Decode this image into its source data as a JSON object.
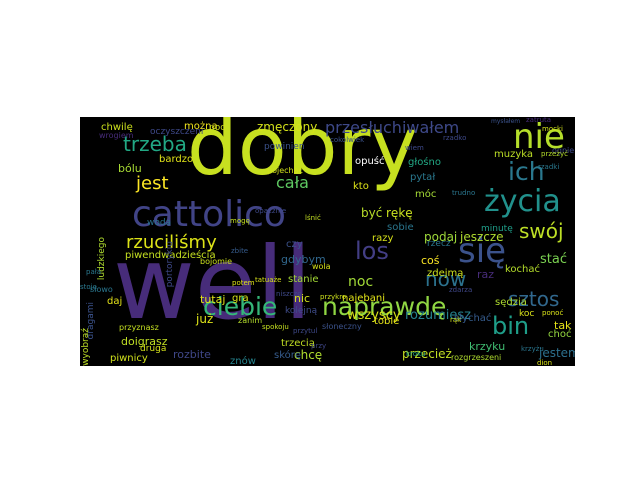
{
  "figure": {
    "background": "#000000",
    "page_background": "#ffffff",
    "colormap": "viridis"
  },
  "words": [
    {
      "text": "well",
      "color": "#472c7a"
    },
    {
      "text": "dobry",
      "color": "#c7e020"
    },
    {
      "text": "cattolico",
      "color": "#414487"
    },
    {
      "text": "się",
      "color": "#3b528b"
    },
    {
      "text": "naprawdę",
      "color": "#90d743"
    },
    {
      "text": "ciebie",
      "color": "#35b779"
    },
    {
      "text": "życia",
      "color": "#21918c"
    },
    {
      "text": "nie",
      "color": "#b5de2b"
    },
    {
      "text": "ich",
      "color": "#2a788e"
    },
    {
      "text": "trzeba",
      "color": "#22a884"
    },
    {
      "text": "bin",
      "color": "#1f9e89"
    },
    {
      "text": "los",
      "color": "#433e85"
    },
    {
      "text": "now",
      "color": "#2c728e"
    },
    {
      "text": "rzuciliśmy",
      "color": "#dde318"
    },
    {
      "text": "sztos",
      "color": "#31688e"
    },
    {
      "text": "swój",
      "color": "#bddf26"
    },
    {
      "text": "jest",
      "color": "#fde725"
    },
    {
      "text": "przesłuchiwałem",
      "color": "#3e4989"
    },
    {
      "text": "cała",
      "color": "#5ec962"
    },
    {
      "text": "być",
      "color": "#b8de29"
    },
    {
      "text": "rękę",
      "color": "#cae11f"
    },
    {
      "text": "podaj",
      "color": "#9fda3a"
    },
    {
      "text": "jeszcze",
      "color": "#b0dd2f"
    },
    {
      "text": "noc",
      "color": "#a2da37"
    },
    {
      "text": "wszyscy",
      "color": "#d8e219"
    },
    {
      "text": "rozumiesz",
      "color": "#26828e"
    },
    {
      "text": "stać",
      "color": "#7ad151"
    },
    {
      "text": "zmęczony",
      "color": "#d5e21a"
    },
    {
      "text": "bólu",
      "color": "#a8db34"
    },
    {
      "text": "chwilę",
      "color": "#cde11d"
    },
    {
      "text": "można",
      "color": "#f1e51d"
    },
    {
      "text": "bardzo",
      "color": "#e2e418"
    },
    {
      "text": "piwendwadzieścia",
      "color": "#c5e021"
    },
    {
      "text": "tak",
      "color": "#e7e419"
    },
    {
      "text": "już",
      "color": "#dde318"
    },
    {
      "text": "tutaj",
      "color": "#e2e418"
    },
    {
      "text": "nic",
      "color": "#d2e21b"
    },
    {
      "text": "chcę",
      "color": "#b0dd2f"
    },
    {
      "text": "przecież",
      "color": "#c2df23"
    },
    {
      "text": "jestem",
      "color": "#2d708e"
    },
    {
      "text": "krzyku",
      "color": "#40bd72"
    },
    {
      "text": "doigrasz",
      "color": "#c0df25"
    },
    {
      "text": "daj",
      "color": "#e5e419"
    },
    {
      "text": "gra",
      "color": "#dae319"
    },
    {
      "text": "znów",
      "color": "#25848e"
    },
    {
      "text": "rozbite",
      "color": "#3f4788"
    },
    {
      "text": "piwnicy",
      "color": "#d0e11c"
    },
    {
      "text": "skórę",
      "color": "#365c8d"
    },
    {
      "text": "gdybym",
      "color": "#31688e"
    },
    {
      "text": "czy",
      "color": "#3b528b"
    },
    {
      "text": "razy",
      "color": "#d8e219"
    },
    {
      "text": "sobie",
      "color": "#2a768e"
    },
    {
      "text": "najebani",
      "color": "#e2e418"
    },
    {
      "text": "zdejmą",
      "color": "#cde11d"
    },
    {
      "text": "kochać",
      "color": "#b5de2b"
    },
    {
      "text": "coś",
      "color": "#fde725"
    },
    {
      "text": "tobie",
      "color": "#e5e419"
    },
    {
      "text": "muzyka",
      "color": "#bddf26"
    },
    {
      "text": "głośno",
      "color": "#22a884"
    },
    {
      "text": "pytał",
      "color": "#2a788e"
    },
    {
      "text": "móc",
      "color": "#a5db36"
    },
    {
      "text": "kto",
      "color": "#dde318"
    },
    {
      "text": "opuść",
      "color": "#ffffff"
    },
    {
      "text": "powinien",
      "color": "#3b528b"
    },
    {
      "text": "choć",
      "color": "#95d840"
    },
    {
      "text": "sędzia",
      "color": "#b0dd2f"
    },
    {
      "text": "kolejną",
      "color": "#3e4c8a"
    },
    {
      "text": "stanie",
      "color": "#a5db36"
    },
    {
      "text": "trzecią",
      "color": "#c2df23"
    },
    {
      "text": "słychać",
      "color": "#365c8d"
    },
    {
      "text": "druga",
      "color": "#d5e21a"
    },
    {
      "text": "woda",
      "color": "#2c728e"
    },
    {
      "text": "dragami",
      "color": "#3b528b"
    },
    {
      "text": "portorykiu",
      "color": "#3e4989"
    },
    {
      "text": "ludzkiego",
      "color": "#b0dd2f"
    },
    {
      "text": "wyobraź",
      "color": "#bddf26"
    },
    {
      "text": "rzecz",
      "color": "#2a768e"
    },
    {
      "text": "pod",
      "color": "#cde11d"
    },
    {
      "text": "przyznasz",
      "color": "#c5e021"
    },
    {
      "text": "rozgrzeszeni",
      "color": "#b0dd2f"
    },
    {
      "text": "koc",
      "color": "#dae319"
    },
    {
      "text": "raz",
      "color": "#472c7a"
    },
    {
      "text": "słowo",
      "color": "#2a768e"
    },
    {
      "text": "bojomie",
      "color": "#cde11d"
    },
    {
      "text": "minutę",
      "color": "#1f9e89"
    },
    {
      "text": "ognie",
      "color": "#3e4989"
    },
    {
      "text": "przeżyć",
      "color": "#b5de2b"
    },
    {
      "text": "pojechać",
      "color": "#d2e21b"
    },
    {
      "text": "zanim",
      "color": "#b5de2b"
    },
    {
      "text": "stoję",
      "color": "#2a788e"
    },
    {
      "text": "pała",
      "color": "#2a788e"
    },
    {
      "text": "wola",
      "color": "#d5e21a"
    },
    {
      "text": "słoneczny",
      "color": "#3b528b"
    },
    {
      "text": "spokoju",
      "color": "#c5e021"
    },
    {
      "text": "zbite",
      "color": "#365c8d"
    },
    {
      "text": "przy",
      "color": "#3f4788"
    },
    {
      "text": "zdarza",
      "color": "#3f4788"
    },
    {
      "text": "ponoć",
      "color": "#dae319"
    },
    {
      "text": "kroku",
      "color": "#22a884"
    },
    {
      "text": "dion",
      "color": "#dae319"
    },
    {
      "text": "krzyżu",
      "color": "#2a768e"
    },
    {
      "text": "trudno",
      "color": "#2a768e"
    },
    {
      "text": "przykro",
      "color": "#cde11d"
    },
    {
      "text": "mocki",
      "color": "#d0e11c"
    },
    {
      "text": "oczyszczeni",
      "color": "#3e4989"
    },
    {
      "text": "wrogiem",
      "color": "#472c7a"
    },
    {
      "text": "opacznie",
      "color": "#3e4989"
    },
    {
      "text": "lśnić",
      "color": "#c2df23"
    },
    {
      "text": "zatruta",
      "color": "#472c7a"
    },
    {
      "text": "mysłałem",
      "color": "#3b528b"
    },
    {
      "text": "tatuaże",
      "color": "#d8e219"
    },
    {
      "text": "mogę",
      "color": "#c5e021"
    },
    {
      "text": "potem",
      "color": "#e2e418"
    },
    {
      "text": "niszczę",
      "color": "#3e4989"
    },
    {
      "text": "cokolwiek",
      "color": "#3b528b"
    },
    {
      "text": "rzadko",
      "color": "#3e4989"
    },
    {
      "text": "rąk",
      "color": "#d2e21b"
    },
    {
      "text": "rzadki",
      "color": "#2a788e"
    },
    {
      "text": "wiem",
      "color": "#3e4989"
    },
    {
      "text": "przytul",
      "color": "#3e4989"
    }
  ]
}
